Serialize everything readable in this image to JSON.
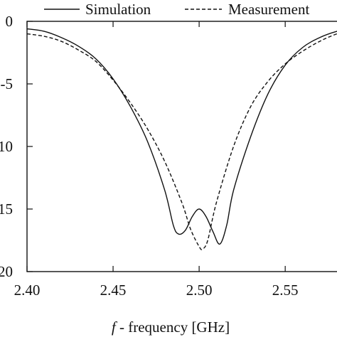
{
  "chart_data": {
    "type": "line",
    "title": "",
    "xlabel_prefix": "f",
    "xlabel": " - frequency [GHz]",
    "ylabel": "",
    "xlim": [
      2.4,
      2.59
    ],
    "ylim": [
      -20,
      0
    ],
    "x_ticks": [
      2.4,
      2.45,
      2.5,
      2.55
    ],
    "x_tick_labels": [
      "2.40",
      "2.45",
      "2.50",
      "2.55"
    ],
    "y_ticks": [
      0,
      -5,
      -10,
      -15,
      -20
    ],
    "y_tick_labels": [
      "0",
      "-5",
      "-10",
      "-15",
      "-20"
    ],
    "grid": false,
    "legend_position": "top",
    "series": [
      {
        "name": "Simulation",
        "line_style": "solid",
        "x": [
          2.4,
          2.41,
          2.42,
          2.43,
          2.44,
          2.45,
          2.46,
          2.47,
          2.48,
          2.485,
          2.488,
          2.492,
          2.496,
          2.5,
          2.504,
          2.508,
          2.512,
          2.516,
          2.52,
          2.53,
          2.54,
          2.55,
          2.56,
          2.57,
          2.58,
          2.59
        ],
        "y": [
          -0.6,
          -0.8,
          -1.3,
          -2.0,
          -3.0,
          -4.6,
          -6.8,
          -9.6,
          -13.5,
          -16.3,
          -17.0,
          -16.7,
          -15.6,
          -15.0,
          -15.6,
          -16.8,
          -17.8,
          -16.3,
          -13.5,
          -9.2,
          -5.8,
          -3.5,
          -2.1,
          -1.3,
          -0.8,
          -0.5
        ]
      },
      {
        "name": "Measurement",
        "line_style": "dashed",
        "x": [
          2.4,
          2.41,
          2.42,
          2.43,
          2.44,
          2.45,
          2.46,
          2.47,
          2.48,
          2.49,
          2.495,
          2.5,
          2.502,
          2.505,
          2.51,
          2.52,
          2.53,
          2.54,
          2.55,
          2.56,
          2.57,
          2.58,
          2.59
        ],
        "y": [
          -1.0,
          -1.2,
          -1.6,
          -2.3,
          -3.2,
          -4.7,
          -6.5,
          -8.6,
          -11.2,
          -14.5,
          -16.6,
          -18.0,
          -18.2,
          -17.5,
          -14.5,
          -10.0,
          -6.8,
          -4.8,
          -3.4,
          -2.4,
          -1.6,
          -1.0,
          -0.6
        ]
      }
    ]
  }
}
